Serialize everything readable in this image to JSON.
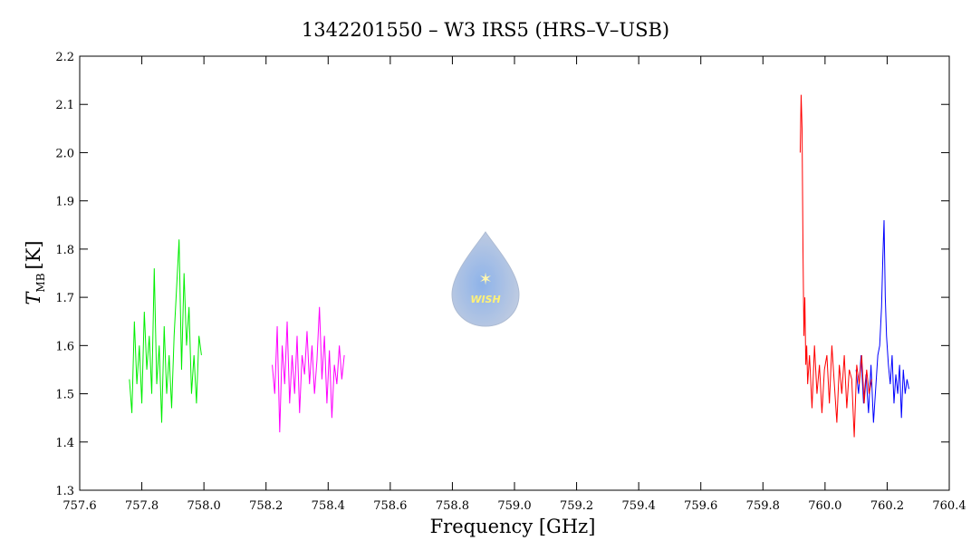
{
  "chart_data": {
    "type": "line",
    "title": "1342201550 – W3 IRS5 (HRS–V–USB)",
    "xlabel": "Frequency [GHz]",
    "ylabel_symbol": "T",
    "ylabel_subscript": "MB",
    "ylabel_unit": "[K]",
    "logo_text": "WISH",
    "xlim": [
      757.6,
      760.4
    ],
    "ylim": [
      1.3,
      2.2
    ],
    "xticks": [
      757.6,
      757.8,
      {
        "value": 758,
        "label": "758.0"
      },
      758.2,
      758.4,
      758.6,
      758.8,
      {
        "value": 759,
        "label": "759.0"
      },
      759.2,
      759.4,
      759.6,
      759.8,
      {
        "value": 760,
        "label": "760.0"
      },
      760.2,
      760.4
    ],
    "yticks": [
      1.3,
      1.4,
      1.5,
      1.6,
      1.7,
      1.8,
      1.9,
      {
        "value": 2,
        "label": "2.0"
      },
      2.1,
      2.2
    ],
    "series": [
      {
        "color": "#00ee00",
        "x": [
          757.76,
          757.768,
          757.776,
          757.784,
          757.792,
          757.8,
          757.808,
          757.816,
          757.824,
          757.832,
          757.84,
          757.848,
          757.856,
          757.864,
          757.872,
          757.88,
          757.888,
          757.896,
          757.904,
          757.912,
          757.92,
          757.928,
          757.936,
          757.944,
          757.952,
          757.96,
          757.968,
          757.976,
          757.984,
          757.992
        ],
        "values": [
          1.53,
          1.46,
          1.65,
          1.52,
          1.6,
          1.48,
          1.67,
          1.55,
          1.62,
          1.5,
          1.76,
          1.52,
          1.6,
          1.44,
          1.64,
          1.5,
          1.58,
          1.47,
          1.62,
          1.72,
          1.82,
          1.55,
          1.75,
          1.6,
          1.68,
          1.5,
          1.58,
          1.48,
          1.62,
          1.58
        ]
      },
      {
        "color": "#ff00ff",
        "x": [
          758.22,
          758.228,
          758.236,
          758.244,
          758.252,
          758.26,
          758.268,
          758.276,
          758.284,
          758.292,
          758.3,
          758.308,
          758.316,
          758.324,
          758.332,
          758.34,
          758.348,
          758.356,
          758.364,
          758.372,
          758.38,
          758.388,
          758.396,
          758.404,
          758.412,
          758.42,
          758.428,
          758.436,
          758.444,
          758.452
        ],
        "values": [
          1.56,
          1.5,
          1.64,
          1.42,
          1.6,
          1.52,
          1.65,
          1.48,
          1.58,
          1.5,
          1.62,
          1.46,
          1.58,
          1.54,
          1.63,
          1.52,
          1.6,
          1.5,
          1.57,
          1.68,
          1.53,
          1.62,
          1.48,
          1.59,
          1.45,
          1.56,
          1.52,
          1.6,
          1.53,
          1.58
        ]
      },
      {
        "color": "#0000ff",
        "x": [
          760.1,
          760.108,
          760.116,
          760.124,
          760.132,
          760.14,
          760.148,
          760.156,
          760.164,
          760.17,
          760.176,
          760.182,
          760.186,
          760.19,
          760.194,
          760.198,
          760.204,
          760.21,
          760.216,
          760.222,
          760.228,
          760.234,
          760.24,
          760.246,
          760.252,
          760.258,
          760.264,
          760.27
        ],
        "values": [
          1.55,
          1.5,
          1.58,
          1.48,
          1.54,
          1.46,
          1.56,
          1.44,
          1.52,
          1.58,
          1.6,
          1.68,
          1.78,
          1.86,
          1.7,
          1.62,
          1.56,
          1.52,
          1.58,
          1.48,
          1.54,
          1.5,
          1.56,
          1.45,
          1.55,
          1.5,
          1.53,
          1.51
        ]
      },
      {
        "color": "#ff0000",
        "x": [
          759.92,
          759.923,
          759.926,
          759.929,
          759.932,
          759.935,
          759.938,
          759.941,
          759.944,
          759.95,
          759.958,
          759.966,
          759.974,
          759.982,
          759.99,
          759.998,
          760.006,
          760.014,
          760.022,
          760.03,
          760.038,
          760.046,
          760.054,
          760.062,
          760.07,
          760.078,
          760.086,
          760.094,
          760.102,
          760.11,
          760.118,
          760.126,
          760.134,
          760.142,
          760.15
        ],
        "values": [
          2.0,
          2.12,
          2.05,
          1.8,
          1.62,
          1.7,
          1.56,
          1.6,
          1.52,
          1.58,
          1.47,
          1.6,
          1.5,
          1.56,
          1.46,
          1.55,
          1.58,
          1.48,
          1.6,
          1.52,
          1.44,
          1.56,
          1.5,
          1.58,
          1.47,
          1.55,
          1.53,
          1.41,
          1.56,
          1.52,
          1.58,
          1.48,
          1.55,
          1.5,
          1.53
        ]
      }
    ]
  }
}
